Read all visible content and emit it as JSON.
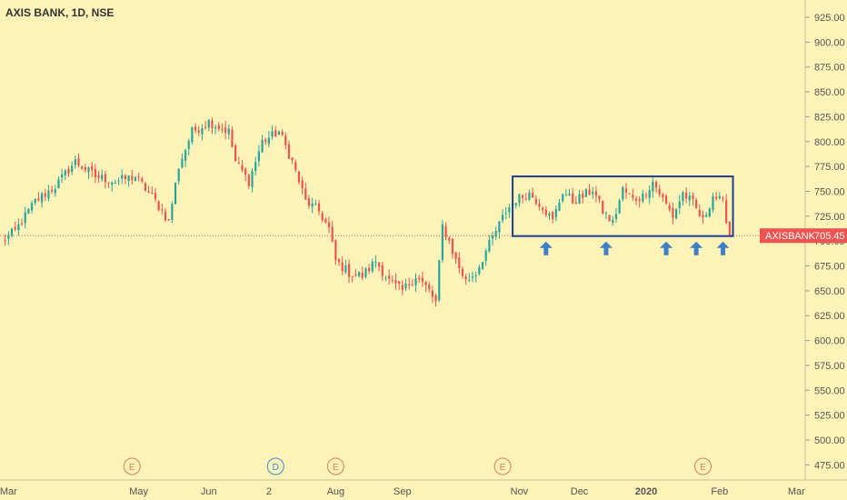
{
  "header": {
    "title": "AXIS BANK, 1D, NSE"
  },
  "colors": {
    "background": "#fdf3b8",
    "up": "#26a69a",
    "down": "#ef5350",
    "box": "#1f3f8f",
    "arrow": "#3d7fc6",
    "price_line": "#ef5350",
    "earnings": "#e07a5f",
    "dividend": "#2f8fd8"
  },
  "chart_data": {
    "type": "candlestick",
    "symbol": "AXISBANK",
    "last_price": "705.45",
    "price_ticks": [
      "925.00",
      "900.00",
      "875.00",
      "850.00",
      "825.00",
      "800.00",
      "775.00",
      "750.00",
      "725.00",
      "700.00",
      "675.00",
      "650.00",
      "625.00",
      "600.00",
      "575.00",
      "550.00",
      "525.00",
      "500.00",
      "475.00"
    ],
    "ylim": [
      460,
      935
    ],
    "time_labels": [
      {
        "label": "Mar",
        "bar": 2
      },
      {
        "label": "May",
        "bar": 41
      },
      {
        "label": "Jun",
        "bar": 62
      },
      {
        "label": "2",
        "bar": 80
      },
      {
        "label": "Aug",
        "bar": 100
      },
      {
        "label": "Sep",
        "bar": 120
      },
      {
        "label": "Nov",
        "bar": 155
      },
      {
        "label": "Dec",
        "bar": 173
      },
      {
        "label": "2020",
        "bar": 193
      },
      {
        "label": "Feb",
        "bar": 215
      },
      {
        "label": "Mar",
        "bar": 238
      }
    ],
    "bar_count": 240,
    "anchors": [
      [
        0,
        700
      ],
      [
        4,
        710
      ],
      [
        10,
        740
      ],
      [
        16,
        755
      ],
      [
        22,
        780
      ],
      [
        28,
        765
      ],
      [
        34,
        760
      ],
      [
        40,
        765
      ],
      [
        46,
        740
      ],
      [
        50,
        720
      ],
      [
        53,
        775
      ],
      [
        57,
        810
      ],
      [
        62,
        820
      ],
      [
        68,
        810
      ],
      [
        70,
        780
      ],
      [
        74,
        760
      ],
      [
        78,
        800
      ],
      [
        83,
        810
      ],
      [
        87,
        780
      ],
      [
        91,
        740
      ],
      [
        95,
        730
      ],
      [
        98,
        712
      ],
      [
        100,
        680
      ],
      [
        104,
        668
      ],
      [
        108,
        665
      ],
      [
        112,
        680
      ],
      [
        116,
        660
      ],
      [
        120,
        650
      ],
      [
        124,
        665
      ],
      [
        128,
        650
      ],
      [
        130,
        638
      ],
      [
        132,
        715
      ],
      [
        134,
        700
      ],
      [
        136,
        680
      ],
      [
        139,
        660
      ],
      [
        142,
        668
      ],
      [
        145,
        690
      ],
      [
        148,
        710
      ],
      [
        151,
        730
      ],
      [
        154,
        742
      ],
      [
        158,
        748
      ],
      [
        162,
        735
      ],
      [
        165,
        720
      ],
      [
        168,
        750
      ],
      [
        171,
        740
      ],
      [
        174,
        745
      ],
      [
        177,
        752
      ],
      [
        180,
        730
      ],
      [
        183,
        718
      ],
      [
        186,
        752
      ],
      [
        189,
        742
      ],
      [
        192,
        745
      ],
      [
        195,
        760
      ],
      [
        198,
        742
      ],
      [
        201,
        725
      ],
      [
        204,
        748
      ],
      [
        207,
        738
      ],
      [
        210,
        720
      ],
      [
        213,
        746
      ],
      [
        216,
        738
      ],
      [
        218,
        708
      ]
    ],
    "events": [
      {
        "label": "E",
        "kind": "earnings",
        "bar": 39
      },
      {
        "label": "D",
        "kind": "dividend",
        "bar": 82
      },
      {
        "label": "E",
        "kind": "earnings",
        "bar": 100
      },
      {
        "label": "E",
        "kind": "earnings",
        "bar": 150
      },
      {
        "label": "E",
        "kind": "earnings",
        "bar": 210
      }
    ],
    "range_box": {
      "bar_start": 153,
      "bar_end": 219,
      "top": 765,
      "bottom": 705
    },
    "support_arrows": [
      163,
      181,
      199,
      208,
      216
    ]
  }
}
